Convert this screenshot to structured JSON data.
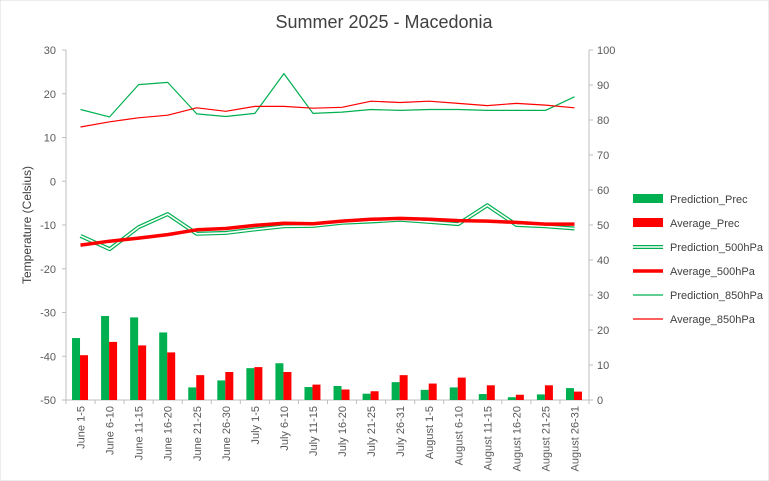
{
  "chart_data": {
    "type": "bar",
    "title": "Summer 2025 - Macedonia",
    "ylabel": "Temperature  (Celsius)",
    "y2label": "",
    "ylim": [
      -50,
      30
    ],
    "y2lim": [
      0,
      100
    ],
    "y_ticks": [
      "30",
      "20",
      "10",
      "0",
      "-10",
      "-20",
      "-30",
      "-40",
      "-50"
    ],
    "y2_ticks": [
      "100",
      "90",
      "80",
      "70",
      "60",
      "50",
      "40",
      "30",
      "20",
      "10",
      "0"
    ],
    "grid": false,
    "legend_position": "right",
    "categories": [
      "June 1-5",
      "June 6-10",
      "June 11-15",
      "June 16-20",
      "June 21-25",
      "June 26-30",
      "July 1-5",
      "July 6-10",
      "July 11-15",
      "July 16-20",
      "July 21-25",
      "July 26-31",
      "August 1-5",
      "August 6-10",
      "August 11-15",
      "August 16-20",
      "August 21-25",
      "August 26-31"
    ],
    "series": [
      {
        "name": "Prediction_Prec",
        "kind": "bar",
        "axis": "right",
        "color": "#00b050",
        "values": [
          17.7,
          24.0,
          23.6,
          19.3,
          3.6,
          5.6,
          9.1,
          10.5,
          3.7,
          4.0,
          1.8,
          5.1,
          2.9,
          3.6,
          1.7,
          0.8,
          1.6,
          3.4
        ]
      },
      {
        "name": "Average_Prec",
        "kind": "bar",
        "axis": "right",
        "color": "#ff0000",
        "values": [
          12.8,
          16.6,
          15.6,
          13.6,
          7.1,
          8.0,
          9.4,
          8.0,
          4.4,
          3.0,
          2.5,
          7.1,
          4.7,
          6.4,
          4.2,
          1.5,
          4.2,
          2.4
        ]
      },
      {
        "name": "Prediction_500hPa",
        "kind": "line",
        "axis": "left",
        "color": "#00b050",
        "style": "double",
        "values": [
          -12.5,
          -15.5,
          -10.5,
          -7.5,
          -12.0,
          -11.8,
          -11.0,
          -10.3,
          -10.2,
          -9.5,
          -9.2,
          -8.8,
          -9.3,
          -9.8,
          -5.5,
          -10.0,
          -10.3,
          -10.8
        ]
      },
      {
        "name": "Average_500hPa",
        "kind": "line",
        "axis": "left",
        "color": "#ff0000",
        "style": "thick",
        "values": [
          -14.6,
          -13.7,
          -13.0,
          -12.2,
          -11.1,
          -10.8,
          -10.1,
          -9.6,
          -9.7,
          -9.1,
          -8.7,
          -8.5,
          -8.7,
          -9.0,
          -9.1,
          -9.4,
          -9.8,
          -9.8
        ]
      },
      {
        "name": "Prediction_850hPa",
        "kind": "line",
        "axis": "left",
        "color": "#00b050",
        "style": "thin",
        "values": [
          16.4,
          14.7,
          22.1,
          22.6,
          15.4,
          14.8,
          15.5,
          24.6,
          15.5,
          15.8,
          16.4,
          16.2,
          16.4,
          16.4,
          16.2,
          16.2,
          16.2,
          19.3
        ]
      },
      {
        "name": "Average_850hPa",
        "kind": "line",
        "axis": "left",
        "color": "#ff0000",
        "style": "thin",
        "values": [
          12.4,
          13.6,
          14.5,
          15.1,
          16.8,
          16.0,
          17.1,
          17.1,
          16.7,
          16.9,
          18.3,
          18.0,
          18.3,
          17.8,
          17.3,
          17.8,
          17.4,
          16.8
        ]
      }
    ]
  }
}
